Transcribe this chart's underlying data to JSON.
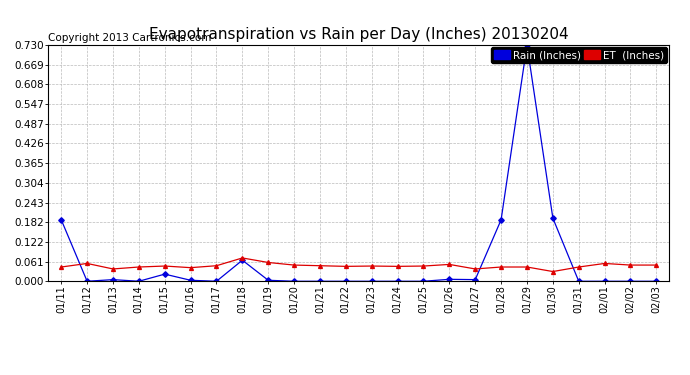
{
  "title": "Evapotranspiration vs Rain per Day (Inches) 20130204",
  "copyright": "Copyright 2013 Cartronics.com",
  "x_labels": [
    "01/11",
    "01/12",
    "01/13",
    "01/14",
    "01/15",
    "01/16",
    "01/17",
    "01/18",
    "01/19",
    "01/20",
    "01/21",
    "01/22",
    "01/23",
    "01/24",
    "01/25",
    "01/26",
    "01/27",
    "01/28",
    "01/29",
    "01/30",
    "01/31",
    "02/01",
    "02/02",
    "02/03"
  ],
  "rain_values": [
    0.19,
    0.0,
    0.005,
    0.0,
    0.022,
    0.003,
    0.0,
    0.065,
    0.003,
    0.0,
    0.0,
    0.0,
    0.0,
    0.0,
    0.0,
    0.006,
    0.005,
    0.19,
    0.73,
    0.195,
    0.0,
    0.0,
    0.0,
    0.0
  ],
  "et_values": [
    0.044,
    0.055,
    0.038,
    0.044,
    0.047,
    0.042,
    0.048,
    0.072,
    0.058,
    0.05,
    0.048,
    0.046,
    0.047,
    0.046,
    0.047,
    0.052,
    0.038,
    0.044,
    0.044,
    0.03,
    0.044,
    0.055,
    0.05,
    0.05
  ],
  "rain_color": "#0000dd",
  "et_color": "#dd0000",
  "background_color": "#ffffff",
  "grid_color": "#bbbbbb",
  "ylim": [
    0.0,
    0.73
  ],
  "yticks": [
    0.0,
    0.061,
    0.122,
    0.182,
    0.243,
    0.304,
    0.365,
    0.426,
    0.487,
    0.547,
    0.608,
    0.669,
    0.73
  ],
  "title_fontsize": 11,
  "copyright_fontsize": 7.5,
  "legend_rain_label": "Rain (Inches)",
  "legend_et_label": "ET  (Inches)"
}
